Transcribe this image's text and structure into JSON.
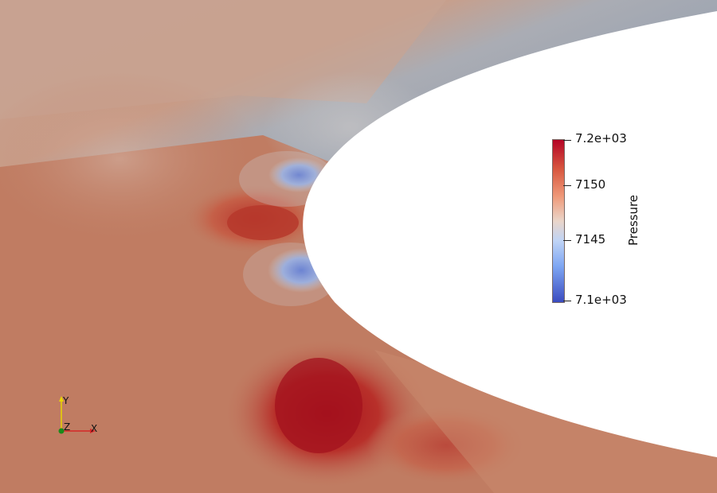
{
  "viewport": {
    "background_color": "#c07c62",
    "body_color": "#ffffff"
  },
  "colorbar": {
    "title": "Pressure",
    "ticks": [
      {
        "label": "7.2e+03"
      },
      {
        "label": "7150"
      },
      {
        "label": "7145"
      },
      {
        "label": "7.1e+03"
      }
    ],
    "colormap": "cool-to-warm",
    "range": [
      7100,
      7200
    ]
  },
  "orientation_axes": {
    "x_label": "X",
    "y_label": "Y",
    "z_label": "Z",
    "x_color": "#d62728",
    "y_color": "#e8d400",
    "z_color": "#1a8a1a"
  }
}
